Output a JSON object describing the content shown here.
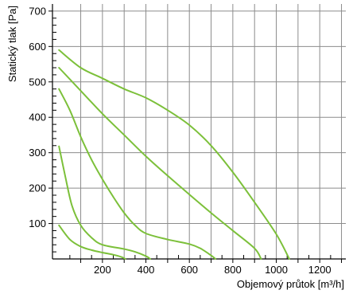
{
  "chart_data": {
    "type": "line",
    "xlabel": "Objemový průtok [m³/h]",
    "ylabel": "Statický tlak [Pa]",
    "xlim": [
      -30,
      1320
    ],
    "ylim": [
      0,
      720
    ],
    "x_ticks": [
      200,
      400,
      600,
      800,
      1000,
      1200
    ],
    "y_ticks": [
      100,
      200,
      300,
      400,
      500,
      600,
      700
    ],
    "grid": true,
    "line_color": "#7cc03a",
    "series": [
      {
        "points": [
          [
            0,
            590
          ],
          [
            100,
            540
          ],
          [
            200,
            510
          ],
          [
            300,
            480
          ],
          [
            400,
            455
          ],
          [
            500,
            420
          ],
          [
            600,
            378
          ],
          [
            700,
            320
          ],
          [
            800,
            245
          ],
          [
            900,
            160
          ],
          [
            1000,
            70
          ],
          [
            1060,
            0
          ]
        ]
      },
      {
        "points": [
          [
            0,
            540
          ],
          [
            100,
            475
          ],
          [
            200,
            410
          ],
          [
            300,
            350
          ],
          [
            400,
            290
          ],
          [
            500,
            235
          ],
          [
            600,
            182
          ],
          [
            700,
            130
          ],
          [
            800,
            80
          ],
          [
            900,
            30
          ],
          [
            930,
            0
          ]
        ]
      },
      {
        "points": [
          [
            0,
            480
          ],
          [
            50,
            420
          ],
          [
            100,
            345
          ],
          [
            150,
            280
          ],
          [
            200,
            225
          ],
          [
            250,
            175
          ],
          [
            300,
            130
          ],
          [
            350,
            95
          ],
          [
            400,
            72
          ],
          [
            500,
            55
          ],
          [
            600,
            42
          ],
          [
            650,
            30
          ],
          [
            700,
            10
          ],
          [
            720,
            0
          ]
        ]
      },
      {
        "points": [
          [
            0,
            318
          ],
          [
            30,
            230
          ],
          [
            60,
            150
          ],
          [
            100,
            95
          ],
          [
            150,
            60
          ],
          [
            200,
            40
          ],
          [
            300,
            28
          ],
          [
            350,
            20
          ],
          [
            400,
            8
          ],
          [
            420,
            0
          ]
        ]
      },
      {
        "points": [
          [
            0,
            95
          ],
          [
            50,
            55
          ],
          [
            100,
            35
          ],
          [
            150,
            25
          ],
          [
            200,
            18
          ],
          [
            250,
            12
          ],
          [
            290,
            5
          ],
          [
            305,
            0
          ]
        ]
      }
    ]
  }
}
